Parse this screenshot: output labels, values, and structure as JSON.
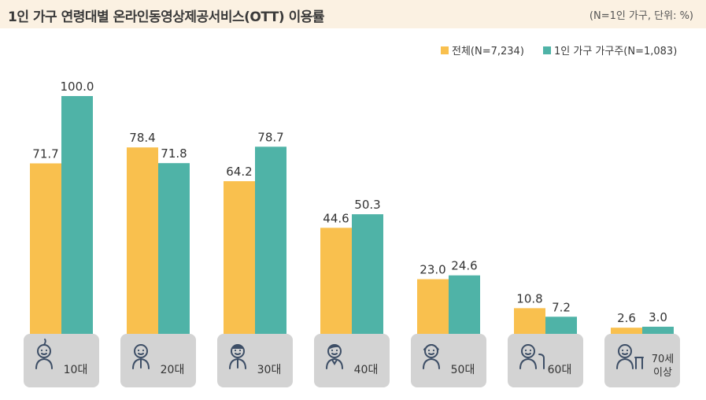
{
  "header": {
    "title": "1인 가구 연령대별 온라인동영상제공서비스(OTT) 이용률",
    "unit_note": "(N=1인 가구, 단위: %)"
  },
  "colors": {
    "series_all": "#f9c04e",
    "series_single": "#4fb3a7",
    "pedestal": "#d3d3d3",
    "icon": "#3d4e66"
  },
  "chart_data": {
    "type": "bar",
    "categories": [
      "10대",
      "20대",
      "30대",
      "40대",
      "50대",
      "60대",
      "70세 이상"
    ],
    "category_icons": [
      "child-icon",
      "young-man-icon",
      "man-icon",
      "middle-aged-icon",
      "older-adult-icon",
      "elder-cane-icon",
      "elder-walker-icon"
    ],
    "series": [
      {
        "name": "전체(N=7,234)",
        "values": [
          71.7,
          78.4,
          64.2,
          44.6,
          23.0,
          10.8,
          2.6
        ],
        "labels": [
          "71.7",
          "78.4",
          "64.2",
          "44.6",
          "23.0",
          "10.8",
          "2.6"
        ]
      },
      {
        "name": "1인 가구 가구주(N=1,083)",
        "values": [
          100.0,
          71.8,
          78.7,
          50.3,
          24.6,
          7.2,
          3.0
        ],
        "labels": [
          "100.0",
          "71.8",
          "78.7",
          "50.3",
          "24.6",
          "7.2",
          "3.0"
        ]
      }
    ],
    "ylim": [
      0,
      100
    ],
    "grid": false,
    "legend_position": "top-right"
  }
}
